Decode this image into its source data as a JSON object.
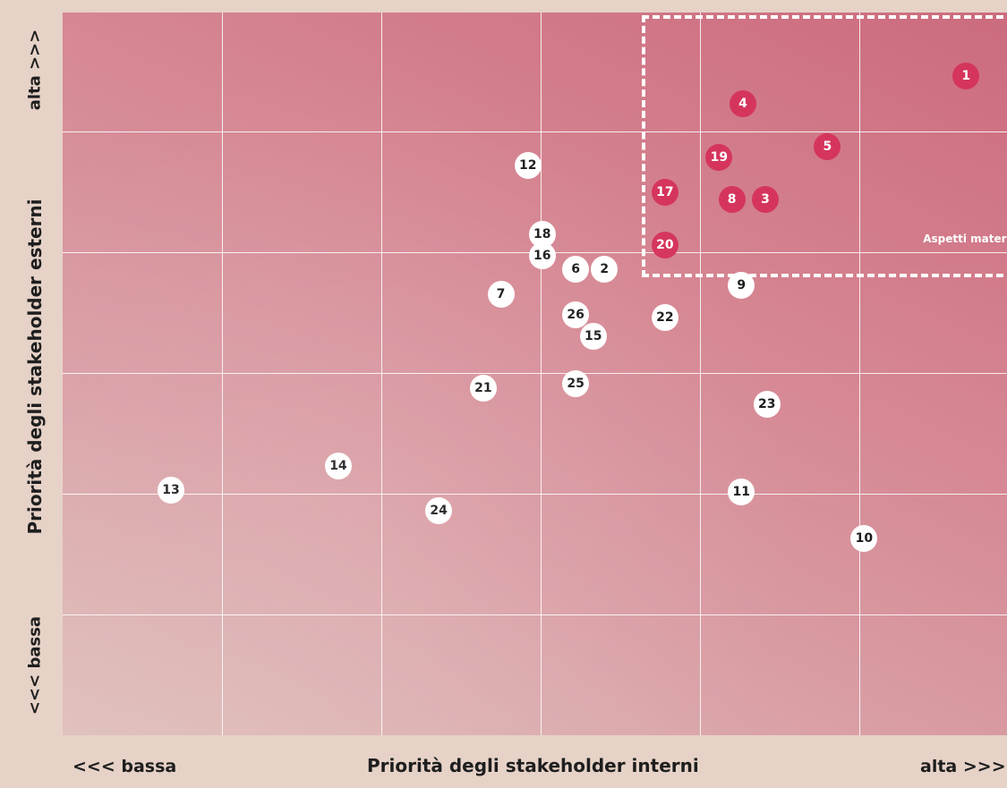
{
  "chart_data": {
    "type": "scatter",
    "title": "",
    "xlabel": "Priorità degli stakeholder interni",
    "ylabel": "Priorità degli stakeholder esterni",
    "x_low_label": "<<< bassa",
    "x_high_label": "alta >>>",
    "y_low_label": "<<< bassa",
    "y_high_label": "alta >>>",
    "xlim": [
      0,
      6
    ],
    "ylim": [
      0,
      6
    ],
    "grid": true,
    "material_region": {
      "label": "Aspetti materiali",
      "x": [
        3.65,
        6
      ],
      "y": [
        3.9,
        6
      ]
    },
    "colors": {
      "material": "#d5355c",
      "other": "#ffffff"
    },
    "points": [
      {
        "id": "1",
        "x": 5.67,
        "y": 5.47,
        "material": true
      },
      {
        "id": "2",
        "x": 3.4,
        "y": 3.87,
        "material": false
      },
      {
        "id": "3",
        "x": 4.41,
        "y": 4.45,
        "material": true
      },
      {
        "id": "4",
        "x": 4.27,
        "y": 5.24,
        "material": true
      },
      {
        "id": "5",
        "x": 4.8,
        "y": 4.89,
        "material": true
      },
      {
        "id": "6",
        "x": 3.22,
        "y": 3.87,
        "material": false
      },
      {
        "id": "7",
        "x": 2.75,
        "y": 3.66,
        "material": false
      },
      {
        "id": "8",
        "x": 4.2,
        "y": 4.45,
        "material": true
      },
      {
        "id": "9",
        "x": 4.26,
        "y": 3.74,
        "material": false
      },
      {
        "id": "10",
        "x": 5.03,
        "y": 1.64,
        "material": false
      },
      {
        "id": "11",
        "x": 4.26,
        "y": 2.02,
        "material": false
      },
      {
        "id": "12",
        "x": 2.92,
        "y": 4.73,
        "material": false
      },
      {
        "id": "13",
        "x": 0.68,
        "y": 2.04,
        "material": false
      },
      {
        "id": "14",
        "x": 1.73,
        "y": 2.24,
        "material": false
      },
      {
        "id": "15",
        "x": 3.33,
        "y": 3.31,
        "material": false
      },
      {
        "id": "16",
        "x": 3.01,
        "y": 3.98,
        "material": false
      },
      {
        "id": "17",
        "x": 3.78,
        "y": 4.51,
        "material": true
      },
      {
        "id": "18",
        "x": 3.01,
        "y": 4.16,
        "material": false
      },
      {
        "id": "19",
        "x": 4.12,
        "y": 4.8,
        "material": true
      },
      {
        "id": "20",
        "x": 3.78,
        "y": 4.07,
        "material": true
      },
      {
        "id": "21",
        "x": 2.64,
        "y": 2.88,
        "material": false
      },
      {
        "id": "22",
        "x": 3.78,
        "y": 3.47,
        "material": false
      },
      {
        "id": "23",
        "x": 4.42,
        "y": 2.75,
        "material": false
      },
      {
        "id": "24",
        "x": 2.36,
        "y": 1.87,
        "material": false
      },
      {
        "id": "25",
        "x": 3.22,
        "y": 2.92,
        "material": false
      },
      {
        "id": "26",
        "x": 3.22,
        "y": 3.49,
        "material": false
      }
    ]
  }
}
